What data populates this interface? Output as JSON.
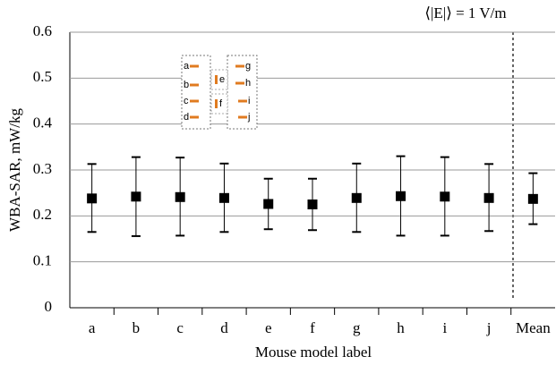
{
  "chart_data": {
    "type": "errorbar",
    "annotation": "⟨|E|⟩ = 1 V/m",
    "x_label": "Mouse model label",
    "y_label": "WBA-SAR, mW/kg",
    "categories": [
      "a",
      "b",
      "c",
      "d",
      "e",
      "f",
      "g",
      "h",
      "i",
      "j",
      "Mean"
    ],
    "values": [
      0.238,
      0.242,
      0.241,
      0.239,
      0.226,
      0.225,
      0.239,
      0.243,
      0.242,
      0.239,
      0.237
    ],
    "upper": [
      0.313,
      0.328,
      0.327,
      0.314,
      0.281,
      0.281,
      0.314,
      0.33,
      0.328,
      0.313,
      0.293
    ],
    "lower": [
      0.165,
      0.156,
      0.157,
      0.165,
      0.171,
      0.169,
      0.165,
      0.157,
      0.157,
      0.167,
      0.182
    ],
    "color": "#000000",
    "ylim": [
      0,
      0.6
    ],
    "yticks": [
      0,
      0.1,
      0.2,
      0.3,
      0.4,
      0.5,
      0.6
    ],
    "grid": true
  }
}
